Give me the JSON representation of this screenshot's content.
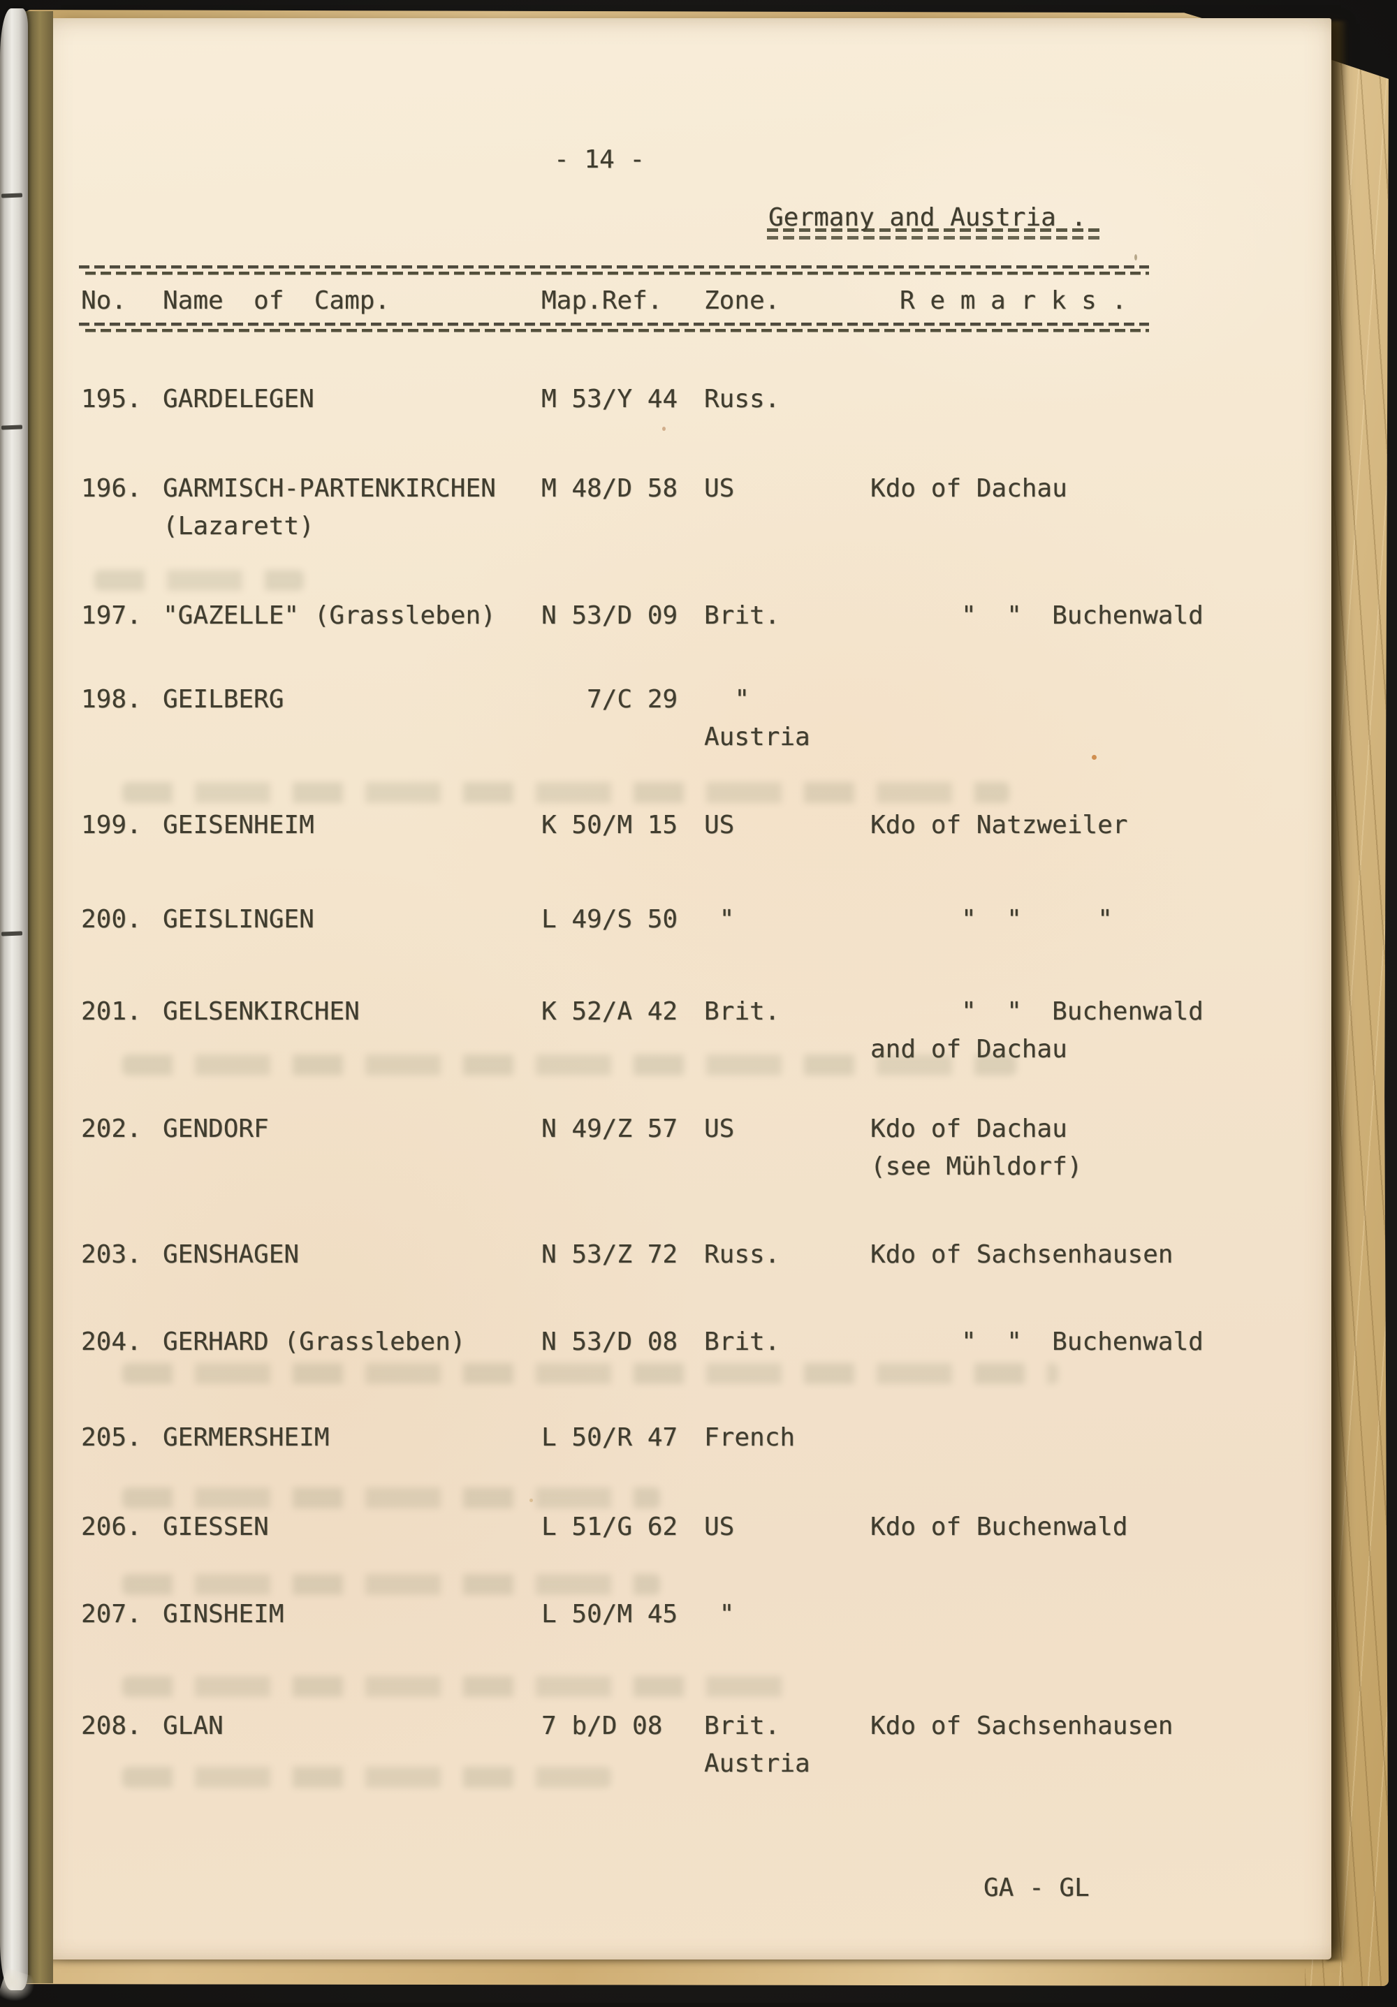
{
  "page": {
    "page_number": "- 14 -",
    "heading": "Germany and Austria .",
    "footer_index": "GA - GL"
  },
  "table": {
    "headers": {
      "no": "No.",
      "name": "Name  of  Camp.",
      "map_ref": "Map.Ref.",
      "zone": "Zone.",
      "remarks": "R e m a r k s ."
    },
    "rows": [
      {
        "no": "195.",
        "name": "GARDELEGEN",
        "map_ref": "M 53/Y 44",
        "zone": "Russ.",
        "remarks": ""
      },
      {
        "no": "196.",
        "name": "GARMISCH-PARTENKIRCHEN\n(Lazarett)",
        "map_ref": "M 48/D 58",
        "zone": "US",
        "remarks": "Kdo of Dachau"
      },
      {
        "no": "197.",
        "name": "\"GAZELLE\" (Grassleben)",
        "map_ref": "N 53/D 09",
        "zone": "Brit.",
        "remarks": "      \"  \"  Buchenwald"
      },
      {
        "no": "198.",
        "name": "GEILBERG",
        "map_ref": "   7/C 29",
        "zone": "  \"\nAustria",
        "remarks": ""
      },
      {
        "no": "199.",
        "name": "GEISENHEIM",
        "map_ref": "K 50/M 15",
        "zone": "US",
        "remarks": "Kdo of Natzweiler"
      },
      {
        "no": "200.",
        "name": "GEISLINGEN",
        "map_ref": "L 49/S 50",
        "zone": " \"",
        "remarks": "      \"  \"     \""
      },
      {
        "no": "201.",
        "name": "GELSENKIRCHEN",
        "map_ref": "K 52/A 42",
        "zone": "Brit.",
        "remarks": "      \"  \"  Buchenwald\nand of Dachau"
      },
      {
        "no": "202.",
        "name": "GENDORF",
        "map_ref": "N 49/Z 57",
        "zone": "US",
        "remarks": "Kdo of Dachau\n(see Mühldorf)"
      },
      {
        "no": "203.",
        "name": "GENSHAGEN",
        "map_ref": "N 53/Z 72",
        "zone": "Russ.",
        "remarks": "Kdo of Sachsenhausen"
      },
      {
        "no": "204.",
        "name": "GERHARD (Grassleben)",
        "map_ref": "N 53/D 08",
        "zone": "Brit.",
        "remarks": "      \"  \"  Buchenwald"
      },
      {
        "no": "205.",
        "name": "GERMERSHEIM",
        "map_ref": "L 50/R 47",
        "zone": "French",
        "remarks": ""
      },
      {
        "no": "206.",
        "name": "GIESSEN",
        "map_ref": "L 51/G 62",
        "zone": "US",
        "remarks": "Kdo of Buchenwald"
      },
      {
        "no": "207.",
        "name": "GINSHEIM",
        "map_ref": "L 50/M 45",
        "zone": " \"",
        "remarks": ""
      },
      {
        "no": "208.",
        "name": "GLAN",
        "map_ref": "7 b/D 08",
        "zone": "Brit.\nAustria",
        "remarks": "Kdo of Sachsenhausen"
      }
    ]
  },
  "colors": {
    "ink": "#403d2f",
    "paper": "#f4e5cd",
    "stack_edge": "#d3b27a",
    "background": "#1a1917"
  }
}
